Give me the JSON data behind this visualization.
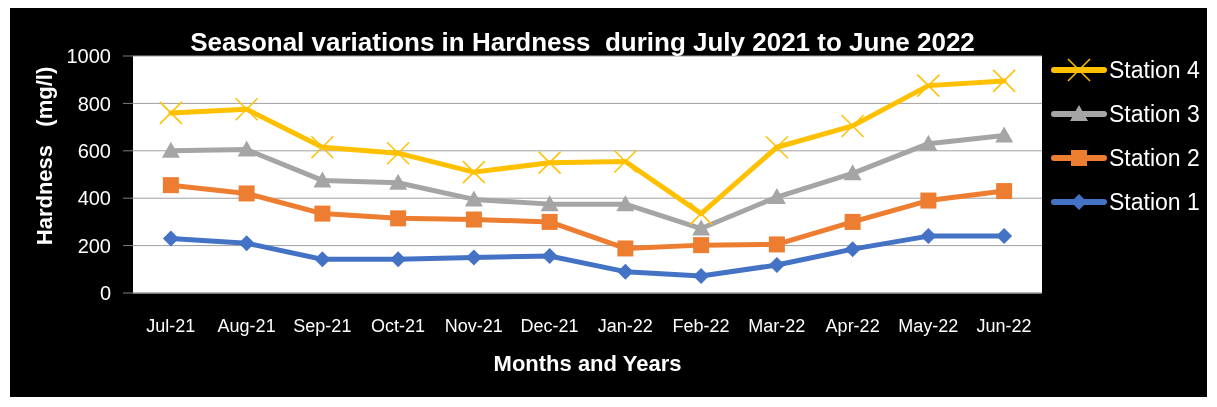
{
  "chart_data": {
    "type": "line",
    "title": "Seasonal variations in Hardness  during July 2021 to June 2022",
    "xlabel": "Months and Years",
    "ylabel": "Hardness   (mg/l)",
    "categories": [
      "Jul-21",
      "Aug-21",
      "Sep-21",
      "Oct-21",
      "Nov-21",
      "Dec-21",
      "Jan-22",
      "Feb-22",
      "Mar-22",
      "Apr-22",
      "May-22",
      "Jun-22"
    ],
    "series": [
      {
        "name": "Station 4",
        "color": "#ffc000",
        "marker": "cross",
        "values": [
          760,
          775,
          615,
          590,
          510,
          550,
          555,
          335,
          615,
          705,
          875,
          895
        ]
      },
      {
        "name": "Station 3",
        "color": "#a5a5a5",
        "marker": "triangle",
        "values": [
          600,
          605,
          475,
          465,
          395,
          375,
          375,
          272,
          405,
          505,
          630,
          665
        ]
      },
      {
        "name": "Station 2",
        "color": "#ed7d31",
        "marker": "square",
        "values": [
          455,
          420,
          335,
          315,
          310,
          300,
          188,
          202,
          205,
          300,
          390,
          430
        ]
      },
      {
        "name": "Station 1",
        "color": "#4472c4",
        "marker": "diamond",
        "values": [
          230,
          210,
          142,
          142,
          150,
          156,
          90,
          72,
          118,
          185,
          240,
          240
        ]
      }
    ],
    "ylim": [
      0,
      1000
    ],
    "yticks": [
      0,
      200,
      400,
      600,
      800,
      1000
    ],
    "grid": "y",
    "legend": "right"
  }
}
